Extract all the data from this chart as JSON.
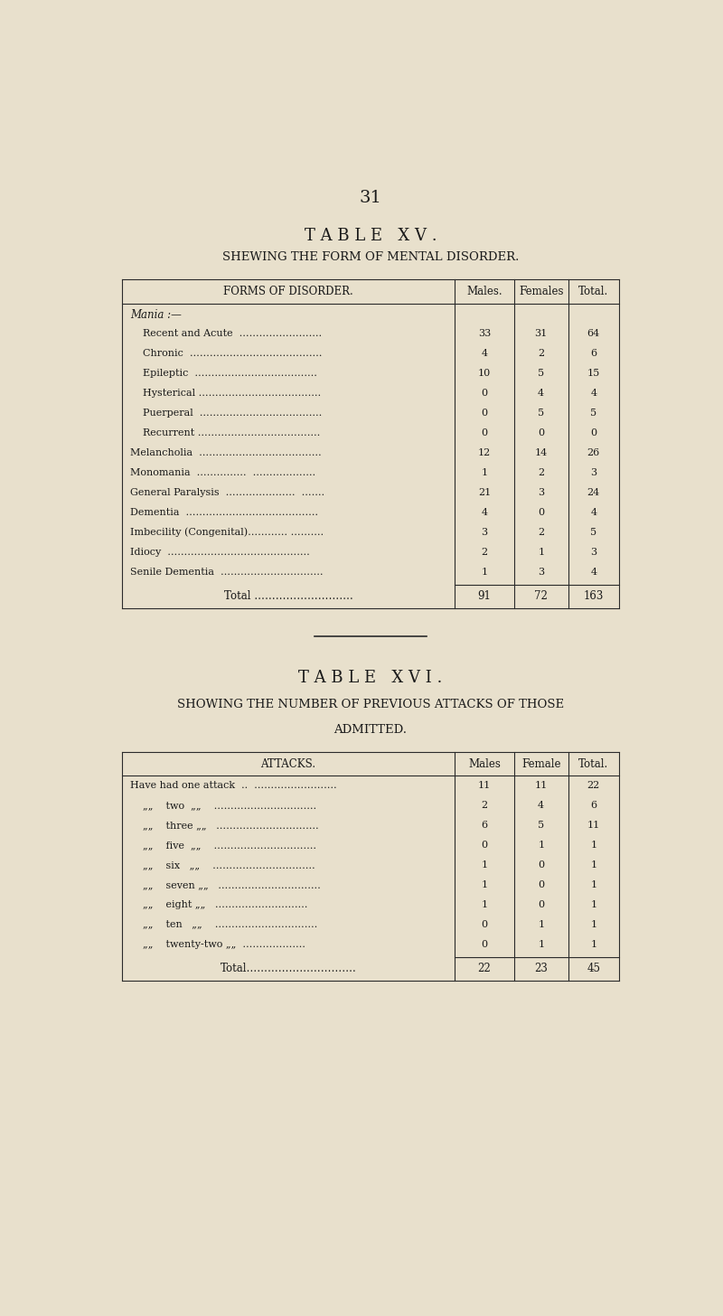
{
  "bg_color": "#e8e0cc",
  "page_number": "31",
  "table15": {
    "title": "T A B L E   X V .",
    "subtitle": "SHEWING THE FORM OF MENTAL DISORDER.",
    "col_headers": [
      "FORMS OF DISORDER.",
      "Males.",
      "Females",
      "Total."
    ],
    "section_header": "Mania :—",
    "rows": [
      [
        "    Recent and Acute  …………………….",
        "33",
        "31",
        "64"
      ],
      [
        "    Chronic  ………………………………….",
        "4",
        "2",
        "6"
      ],
      [
        "    Epileptic  ……………………………….",
        "10",
        "5",
        "15"
      ],
      [
        "    Hysterical ……………………………….",
        "0",
        "4",
        "4"
      ],
      [
        "    Puerperal  ……………………………….",
        "0",
        "5",
        "5"
      ],
      [
        "    Recurrent ……………………………….",
        "0",
        "0",
        "0"
      ],
      [
        "Melancholia  ……………………………….",
        "12",
        "14",
        "26"
      ],
      [
        "Monomania  ……………  ……………….",
        "1",
        "2",
        "3"
      ],
      [
        "General Paralysis  …………………  …….",
        "21",
        "3",
        "24"
      ],
      [
        "Dementia  ………………………………….",
        "4",
        "0",
        "4"
      ],
      [
        "Imbecility (Congenital)………… ……….",
        "3",
        "2",
        "5"
      ],
      [
        "Idiocy  …………………………………….",
        "2",
        "1",
        "3"
      ],
      [
        "Senile Dementia  ………………………….",
        "1",
        "3",
        "4"
      ]
    ],
    "total_row": [
      "Total ……………………….",
      "91",
      "72",
      "163"
    ]
  },
  "table16": {
    "title": "T A B L E   X V I .",
    "subtitle1": "SHOWING THE NUMBER OF PREVIOUS ATTACKS OF THOSE",
    "subtitle2": "ADMITTED.",
    "col_headers": [
      "ATTACKS.",
      "Males",
      "Female",
      "Total."
    ],
    "rows": [
      [
        "Have had one attack  ..  …………………….",
        "11",
        "11",
        "22"
      ],
      [
        "    „„    two  „„    ………………………….",
        "2",
        "4",
        "6"
      ],
      [
        "    „„    three „„   ………………………….",
        "6",
        "5",
        "11"
      ],
      [
        "    „„    five  „„    ………………………….",
        "0",
        "1",
        "1"
      ],
      [
        "    „„    six   „„    ………………………….",
        "1",
        "0",
        "1"
      ],
      [
        "    „„    seven „„   ………………………….",
        "1",
        "0",
        "1"
      ],
      [
        "    „„    eight „„   ……………………….",
        "1",
        "0",
        "1"
      ],
      [
        "    „„    ten   „„    ………………………….",
        "0",
        "1",
        "1"
      ],
      [
        "    „„    twenty-two „„  ……………….",
        "0",
        "1",
        "1"
      ]
    ],
    "total_row": [
      "Total………………………….",
      "22",
      "23",
      "45"
    ]
  },
  "text_color": "#1a1a1a",
  "line_color": "#2a2a2a",
  "font_size_title": 13,
  "font_size_subtitle": 9.5,
  "font_size_table": 8.5,
  "font_size_page": 14
}
